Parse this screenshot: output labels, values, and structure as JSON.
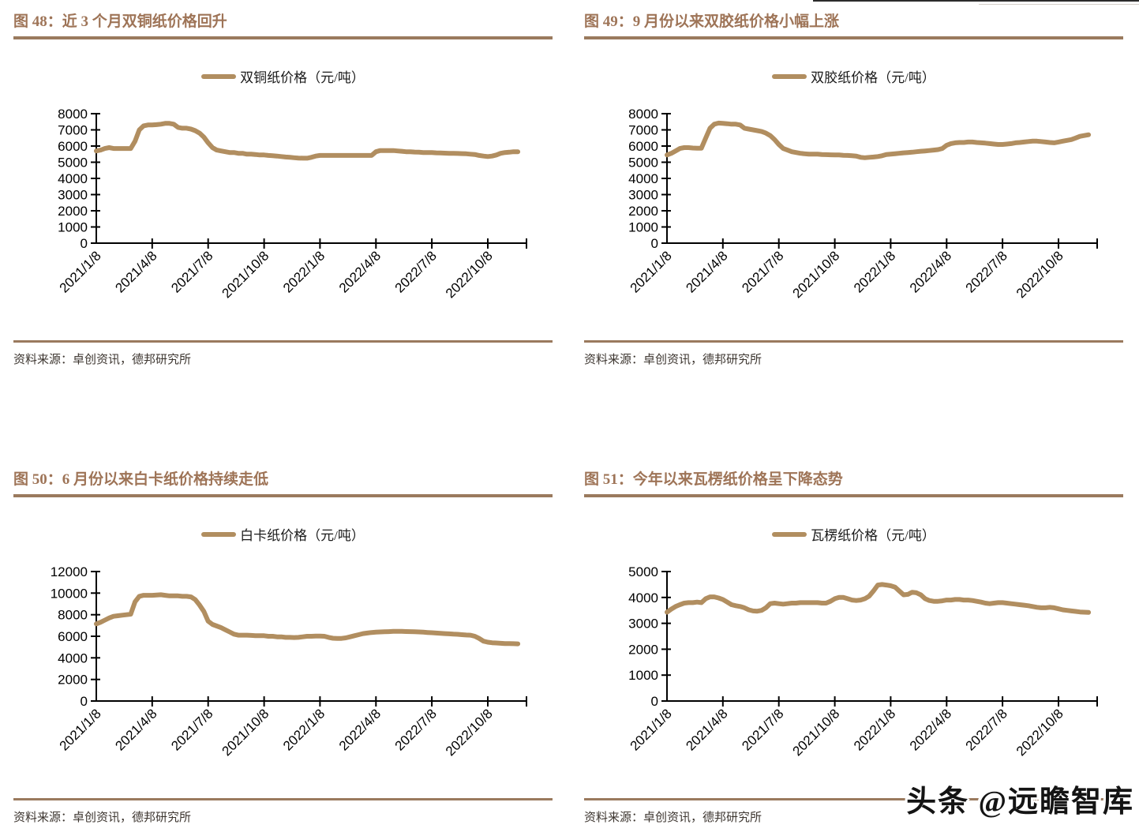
{
  "colors": {
    "title": "#9E7457",
    "rule": "#9A7A5E",
    "series": "#B18E60",
    "source_text": "#3D3630"
  },
  "source": "资料来源：卓创资讯，德邦研究所",
  "watermark": {
    "text": "头条 @远瞻智库"
  },
  "chart_data": [
    {
      "type": "line",
      "title": "图 48：近 3 个月双铜纸价格回升",
      "series_name": "双铜纸价格（元/吨）",
      "xlabel": "",
      "ylabel": "",
      "grid": false,
      "legend_position": "top",
      "ylim": [
        0,
        8000
      ],
      "ytick_step": 1000,
      "x_tick_labels": [
        "2021/1/8",
        "2021/4/8",
        "2021/7/8",
        "2021/10/8",
        "2022/1/8",
        "2022/4/8",
        "2022/7/8",
        "2022/10/8"
      ],
      "x_tick_weeks": [
        0,
        13,
        26,
        39,
        52,
        65,
        78,
        91
      ],
      "x_span": 100,
      "values": [
        5700,
        5750,
        5850,
        5900,
        5850,
        5850,
        5850,
        5850,
        5850,
        6300,
        7000,
        7250,
        7300,
        7300,
        7320,
        7350,
        7400,
        7400,
        7350,
        7150,
        7100,
        7100,
        7050,
        6950,
        6800,
        6550,
        6200,
        5900,
        5750,
        5700,
        5650,
        5600,
        5600,
        5550,
        5550,
        5500,
        5500,
        5480,
        5450,
        5450,
        5420,
        5400,
        5380,
        5350,
        5320,
        5300,
        5280,
        5260,
        5250,
        5250,
        5300,
        5380,
        5420,
        5420,
        5420,
        5420,
        5420,
        5420,
        5420,
        5420,
        5420,
        5420,
        5420,
        5420,
        5420,
        5650,
        5720,
        5720,
        5720,
        5720,
        5700,
        5680,
        5650,
        5650,
        5630,
        5620,
        5600,
        5600,
        5600,
        5580,
        5570,
        5560,
        5550,
        5550,
        5540,
        5530,
        5520,
        5500,
        5480,
        5420,
        5380,
        5350,
        5380,
        5450,
        5550,
        5600,
        5620,
        5650,
        5650
      ]
    },
    {
      "type": "line",
      "title": "图 49：9 月份以来双胶纸价格小幅上涨",
      "series_name": "双胶纸价格（元/吨）",
      "xlabel": "",
      "ylabel": "",
      "grid": false,
      "legend_position": "top",
      "ylim": [
        0,
        8000
      ],
      "ytick_step": 1000,
      "x_tick_labels": [
        "2021/1/8",
        "2021/4/8",
        "2021/7/8",
        "2021/10/8",
        "2022/1/8",
        "2022/4/8",
        "2022/7/8",
        "2022/10/8"
      ],
      "x_tick_weeks": [
        0,
        13,
        26,
        39,
        52,
        65,
        78,
        91
      ],
      "x_span": 100,
      "values": [
        5450,
        5550,
        5700,
        5850,
        5900,
        5900,
        5880,
        5870,
        5870,
        6500,
        7100,
        7350,
        7420,
        7400,
        7380,
        7350,
        7350,
        7300,
        7100,
        7050,
        7000,
        6950,
        6900,
        6800,
        6650,
        6400,
        6100,
        5850,
        5750,
        5650,
        5600,
        5550,
        5520,
        5500,
        5500,
        5500,
        5480,
        5470,
        5460,
        5450,
        5450,
        5430,
        5420,
        5400,
        5380,
        5300,
        5280,
        5300,
        5320,
        5350,
        5400,
        5480,
        5500,
        5520,
        5550,
        5580,
        5600,
        5620,
        5650,
        5680,
        5700,
        5720,
        5750,
        5780,
        5850,
        6050,
        6150,
        6200,
        6220,
        6220,
        6250,
        6250,
        6220,
        6200,
        6180,
        6150,
        6120,
        6100,
        6100,
        6120,
        6150,
        6200,
        6220,
        6250,
        6280,
        6300,
        6300,
        6280,
        6250,
        6220,
        6200,
        6250,
        6300,
        6350,
        6400,
        6500,
        6600,
        6650,
        6700
      ]
    },
    {
      "type": "line",
      "title": "图 50：6 月份以来白卡纸价格持续走低",
      "series_name": "白卡纸价格（元/吨）",
      "xlabel": "",
      "ylabel": "",
      "grid": false,
      "legend_position": "top",
      "ylim": [
        0,
        12000
      ],
      "ytick_step": 2000,
      "x_tick_labels": [
        "2021/1/8",
        "2021/4/8",
        "2021/7/8",
        "2021/10/8",
        "2022/1/8",
        "2022/4/8",
        "2022/7/8",
        "2022/10/8"
      ],
      "x_tick_weeks": [
        0,
        13,
        26,
        39,
        52,
        65,
        78,
        91
      ],
      "x_span": 100,
      "values": [
        7150,
        7300,
        7500,
        7700,
        7850,
        7900,
        7950,
        8000,
        8050,
        9200,
        9700,
        9800,
        9800,
        9800,
        9820,
        9850,
        9800,
        9750,
        9750,
        9750,
        9700,
        9700,
        9650,
        9400,
        8900,
        8300,
        7400,
        7100,
        6950,
        6800,
        6600,
        6400,
        6200,
        6100,
        6100,
        6100,
        6080,
        6050,
        6050,
        6050,
        6000,
        6000,
        5950,
        5950,
        5900,
        5900,
        5880,
        5900,
        5950,
        6000,
        6000,
        6020,
        6020,
        6000,
        5900,
        5820,
        5800,
        5800,
        5850,
        5950,
        6050,
        6150,
        6250,
        6300,
        6350,
        6380,
        6400,
        6420,
        6430,
        6450,
        6450,
        6450,
        6440,
        6430,
        6420,
        6400,
        6380,
        6350,
        6330,
        6300,
        6280,
        6250,
        6230,
        6200,
        6180,
        6150,
        6120,
        6100,
        6000,
        5800,
        5550,
        5450,
        5400,
        5380,
        5350,
        5330,
        5320,
        5310,
        5300
      ]
    },
    {
      "type": "line",
      "title": "图 51：今年以来瓦楞纸价格呈下降态势",
      "series_name": "瓦楞纸价格（元/吨）",
      "xlabel": "",
      "ylabel": "",
      "grid": false,
      "legend_position": "top",
      "ylim": [
        0,
        5000
      ],
      "ytick_step": 1000,
      "x_tick_labels": [
        "2021/1/8",
        "2021/4/8",
        "2021/7/8",
        "2021/10/8",
        "2022/1/8",
        "2022/4/8",
        "2022/7/8",
        "2022/10/8"
      ],
      "x_tick_weeks": [
        0,
        13,
        26,
        39,
        52,
        65,
        78,
        91
      ],
      "x_span": 100,
      "values": [
        3430,
        3550,
        3650,
        3720,
        3780,
        3800,
        3800,
        3820,
        3800,
        3950,
        4020,
        4020,
        3980,
        3920,
        3820,
        3720,
        3680,
        3650,
        3600,
        3520,
        3480,
        3470,
        3500,
        3600,
        3760,
        3780,
        3760,
        3740,
        3760,
        3780,
        3780,
        3800,
        3800,
        3800,
        3800,
        3800,
        3780,
        3780,
        3850,
        3950,
        4000,
        4000,
        3950,
        3900,
        3880,
        3900,
        3950,
        4050,
        4250,
        4480,
        4500,
        4480,
        4450,
        4400,
        4250,
        4100,
        4120,
        4200,
        4180,
        4100,
        3950,
        3880,
        3850,
        3850,
        3870,
        3900,
        3900,
        3920,
        3920,
        3900,
        3900,
        3880,
        3850,
        3820,
        3780,
        3760,
        3780,
        3800,
        3800,
        3780,
        3760,
        3740,
        3720,
        3700,
        3680,
        3650,
        3620,
        3600,
        3600,
        3620,
        3600,
        3560,
        3520,
        3500,
        3480,
        3460,
        3440,
        3430,
        3420
      ]
    }
  ]
}
